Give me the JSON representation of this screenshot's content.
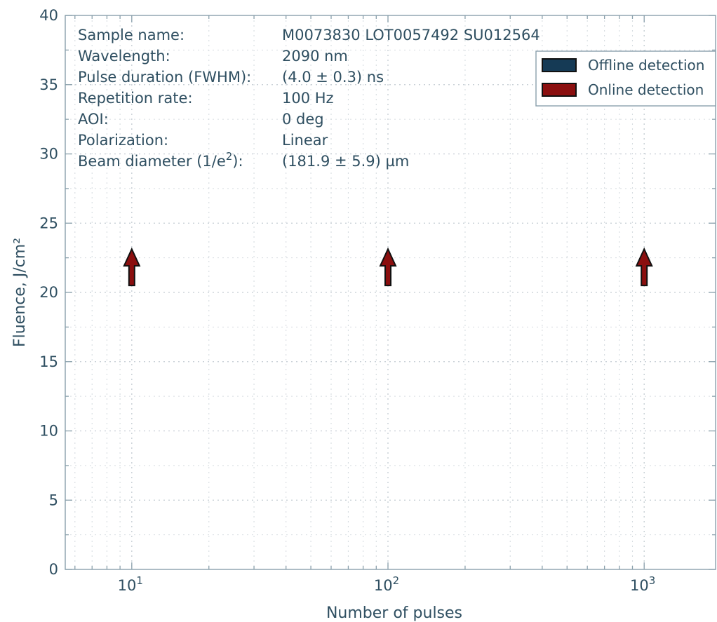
{
  "chart_data": {
    "type": "scatter",
    "title": "",
    "xlabel": "Number of pulses",
    "ylabel": "Fluence, J/cm²",
    "x_scale": "log",
    "xlim": [
      5.5,
      1900
    ],
    "ylim": [
      0,
      40
    ],
    "grid": true,
    "x_ticks": [
      {
        "value": 10,
        "base": "10",
        "exp": "1"
      },
      {
        "value": 100,
        "base": "10",
        "exp": "2"
      },
      {
        "value": 1000,
        "base": "10",
        "exp": "3"
      }
    ],
    "y_ticks": [
      {
        "value": 0,
        "label": "0"
      },
      {
        "value": 5,
        "label": "5"
      },
      {
        "value": 10,
        "label": "10"
      },
      {
        "value": 15,
        "label": "15"
      },
      {
        "value": 20,
        "label": "20"
      },
      {
        "value": 25,
        "label": "25"
      },
      {
        "value": 30,
        "label": "30"
      },
      {
        "value": 35,
        "label": "35"
      },
      {
        "value": 40,
        "label": "40"
      }
    ],
    "legend_position": "top-right",
    "series": [
      {
        "name": "Offline detection",
        "color": "#153a55",
        "marker": "up-arrow",
        "points": []
      },
      {
        "name": "Online detection",
        "color": "#8b0f0f",
        "marker": "up-arrow",
        "points": [
          {
            "x": 10,
            "y": 20.5
          },
          {
            "x": 100,
            "y": 20.5
          },
          {
            "x": 1000,
            "y": 20.5
          }
        ]
      }
    ],
    "annotations": [
      {
        "label": "Sample name:",
        "value": "M0073830 LOT0057492 SU012564"
      },
      {
        "label": "Wavelength:",
        "value": "2090 nm"
      },
      {
        "label": "Pulse duration (FWHM):",
        "value": "(4.0 ± 0.3) ns"
      },
      {
        "label": "Repetition rate:",
        "value": "100 Hz"
      },
      {
        "label": "AOI:",
        "value": "0 deg"
      },
      {
        "label": "Polarization:",
        "value": "Linear"
      },
      {
        "label": "Beam diameter (1/e²):",
        "value": "(181.9 ± 5.9) µm"
      }
    ]
  }
}
